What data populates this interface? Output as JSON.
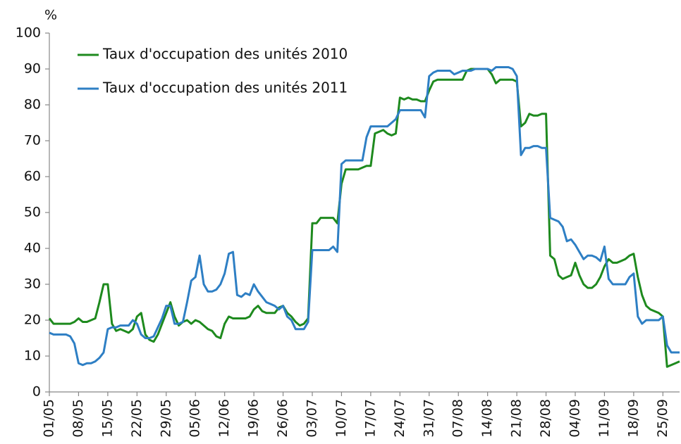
{
  "chart_data": {
    "type": "line",
    "y_label": "%",
    "categories": [
      "01/05",
      null,
      null,
      null,
      null,
      null,
      null,
      "08/05",
      null,
      null,
      null,
      null,
      null,
      null,
      "15/05",
      null,
      null,
      null,
      null,
      null,
      null,
      "22/05",
      null,
      null,
      null,
      null,
      null,
      null,
      "29/05",
      null,
      null,
      null,
      null,
      null,
      null,
      "05/06",
      null,
      null,
      null,
      null,
      null,
      null,
      "12/06",
      null,
      null,
      null,
      null,
      null,
      null,
      "19/06",
      null,
      null,
      null,
      null,
      null,
      null,
      "26/06",
      null,
      null,
      null,
      null,
      null,
      null,
      "03/07",
      null,
      null,
      null,
      null,
      null,
      null,
      "10/07",
      null,
      null,
      null,
      null,
      null,
      null,
      "17/07",
      null,
      null,
      null,
      null,
      null,
      null,
      "24/07",
      null,
      null,
      null,
      null,
      null,
      null,
      "31/07",
      null,
      null,
      null,
      null,
      null,
      null,
      "07/08",
      null,
      null,
      null,
      null,
      null,
      null,
      "14/08",
      null,
      null,
      null,
      null,
      null,
      null,
      "21/08",
      null,
      null,
      null,
      null,
      null,
      null,
      "28/08",
      null,
      null,
      null,
      null,
      null,
      null,
      "04/09",
      null,
      null,
      null,
      null,
      null,
      null,
      "11/09",
      null,
      null,
      null,
      null,
      null,
      null,
      "18/09",
      null,
      null,
      null,
      null,
      null,
      null,
      "25/09",
      null,
      null,
      null,
      null
    ],
    "series": [
      {
        "name": "Taux d'occupation des unités 2010",
        "color": "#1e8a1e",
        "values": [
          20.5,
          19,
          19,
          19,
          19,
          19,
          19.5,
          20.5,
          19.5,
          19.5,
          20,
          20.5,
          25,
          30,
          30,
          19,
          17,
          17.5,
          17,
          16.5,
          17.5,
          21,
          22,
          16,
          14.5,
          14,
          16,
          19,
          22,
          25,
          21,
          18.5,
          19.5,
          20,
          19,
          20,
          19.5,
          18.5,
          17.5,
          17,
          15.5,
          15,
          19,
          21,
          20.5,
          20.5,
          20.5,
          20.5,
          21,
          23,
          24,
          22.5,
          22,
          22,
          22,
          23.5,
          24,
          22,
          21,
          19.5,
          18.5,
          19,
          20.5,
          47,
          47,
          48.5,
          48.5,
          48.5,
          48.5,
          47,
          58,
          62,
          62,
          62,
          62,
          62.5,
          63,
          63,
          72,
          72.5,
          73,
          72,
          71.5,
          72,
          82,
          81.5,
          82,
          81.5,
          81.5,
          81,
          81,
          84,
          86.5,
          87,
          87,
          87,
          87,
          87,
          87,
          87,
          89.5,
          90,
          90,
          90,
          90,
          90,
          88.5,
          86,
          87,
          87,
          87,
          87,
          86.5,
          74,
          75,
          77.5,
          77,
          77,
          77.5,
          77.5,
          38,
          37,
          32.5,
          31.5,
          32,
          32.5,
          36,
          32.5,
          30,
          29,
          29,
          30,
          32,
          35,
          37,
          36,
          36,
          36.5,
          37,
          38,
          38.5,
          32,
          27,
          24,
          23,
          22.5,
          22,
          21,
          7,
          7.5,
          8,
          8.5
        ]
      },
      {
        "name": "Taux d'occupation des unités 2011",
        "color": "#2e7fc4",
        "values": [
          16.5,
          16,
          16,
          16,
          16,
          15.5,
          13.5,
          8,
          7.5,
          8,
          8,
          8.5,
          9.5,
          11,
          17.5,
          18,
          18,
          18.5,
          18.5,
          18.5,
          20,
          19,
          16,
          15,
          15,
          15.5,
          18,
          20.5,
          24,
          24,
          19,
          19,
          19.5,
          25,
          31,
          32,
          38,
          30,
          28,
          28,
          28.5,
          30,
          33,
          38.5,
          39,
          27,
          26.5,
          27.5,
          27,
          30,
          28,
          26.5,
          25,
          24.5,
          24,
          23,
          24,
          21,
          20,
          17.5,
          17.5,
          17.5,
          19.5,
          39.5,
          39.5,
          39.5,
          39.5,
          39.5,
          40.5,
          39,
          63.5,
          64.5,
          64.5,
          64.5,
          64.5,
          64.5,
          71,
          74,
          74,
          74,
          74,
          74,
          75,
          76,
          78.5,
          78.5,
          78.5,
          78.5,
          78.5,
          78.5,
          76.5,
          88,
          89,
          89.5,
          89.5,
          89.5,
          89.5,
          88.5,
          89,
          89.5,
          89.5,
          89.5,
          90,
          90,
          90,
          90,
          89.5,
          90.5,
          90.5,
          90.5,
          90.5,
          90,
          88,
          66,
          68,
          68,
          68.5,
          68.5,
          68,
          68,
          48.5,
          48,
          47.5,
          46,
          42,
          42.5,
          41,
          39,
          37,
          38,
          38,
          37.5,
          36.5,
          40.5,
          31.5,
          30,
          30,
          30,
          30,
          32,
          33,
          21,
          19,
          20,
          20,
          20,
          20,
          21,
          13,
          11,
          11,
          11
        ]
      }
    ],
    "ylim": [
      0,
      100
    ],
    "yticks": [
      0,
      10,
      20,
      30,
      40,
      50,
      60,
      70,
      80,
      90,
      100
    ],
    "grid": false,
    "legend": "upper left"
  }
}
